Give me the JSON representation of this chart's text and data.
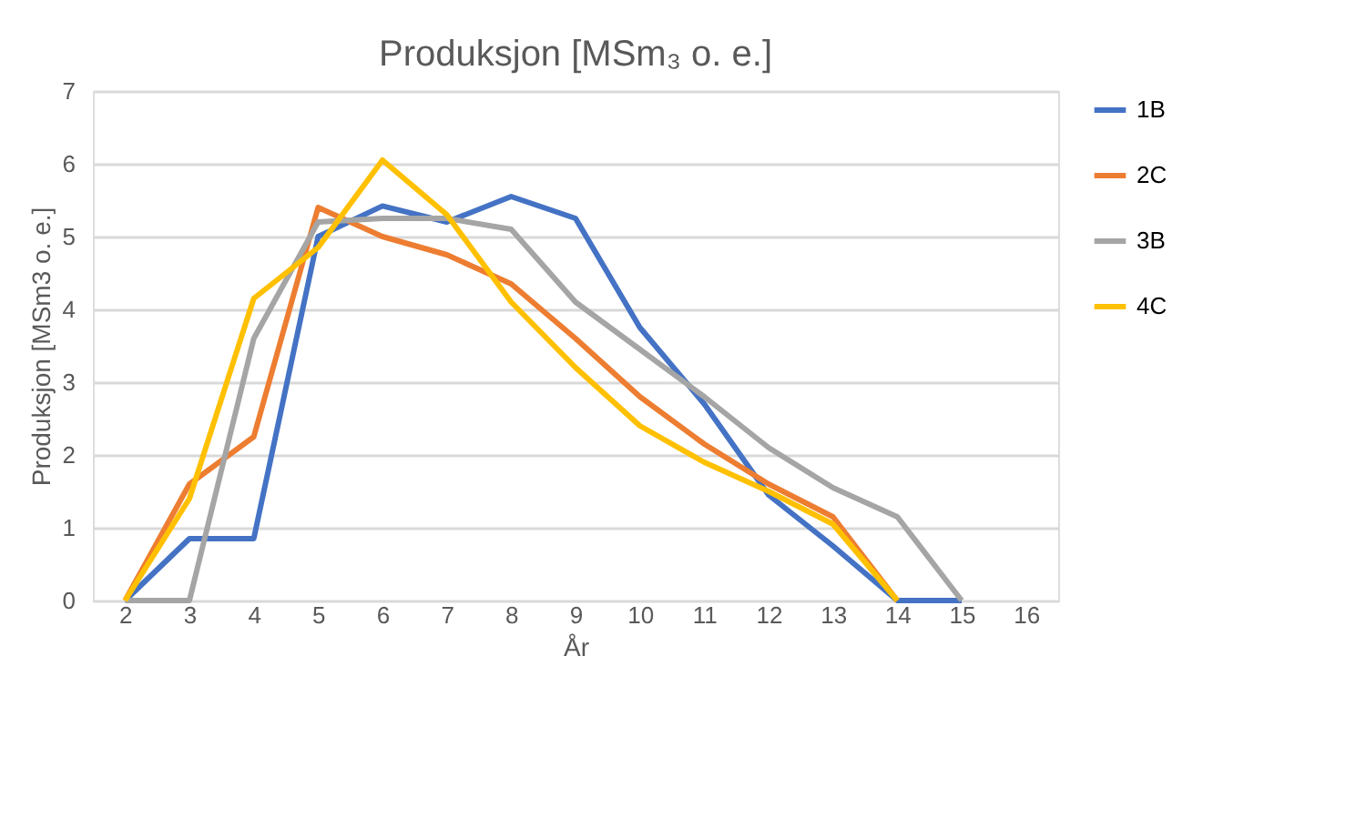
{
  "chart_data": {
    "type": "line",
    "title": "Produksjon [MSm₃ o. e.]",
    "xlabel": "År",
    "ylabel": "Produksjon [MSm3 o. e.]",
    "categories": [
      "2",
      "3",
      "4",
      "5",
      "6",
      "7",
      "8",
      "9",
      "10",
      "11",
      "12",
      "13",
      "14",
      "15",
      "16"
    ],
    "series": [
      {
        "name": "1B",
        "color": "#4472c4",
        "values": [
          0,
          0.85,
          0.85,
          5.0,
          5.42,
          5.2,
          5.55,
          5.25,
          3.75,
          2.7,
          1.45,
          0.75,
          0,
          0,
          null
        ]
      },
      {
        "name": "2C",
        "color": "#ed7d31",
        "values": [
          0,
          1.6,
          2.25,
          5.4,
          5.0,
          4.75,
          4.35,
          3.6,
          2.8,
          2.15,
          1.6,
          1.15,
          0,
          null,
          null
        ]
      },
      {
        "name": "3B",
        "color": "#a5a5a5",
        "values": [
          0,
          0,
          3.6,
          5.2,
          5.25,
          5.25,
          5.1,
          4.1,
          3.45,
          2.8,
          2.1,
          1.55,
          1.15,
          0,
          null
        ]
      },
      {
        "name": "4C",
        "color": "#ffc000",
        "values": [
          0,
          1.4,
          4.15,
          4.85,
          6.05,
          5.3,
          4.1,
          3.2,
          2.4,
          1.9,
          1.5,
          1.05,
          0,
          null,
          null
        ]
      }
    ],
    "ylim": [
      0,
      7
    ],
    "yticks": [
      0,
      1,
      2,
      3,
      4,
      5,
      6,
      7
    ],
    "grid": "y",
    "legend": "right",
    "marker": "none",
    "line_style": "solid"
  }
}
